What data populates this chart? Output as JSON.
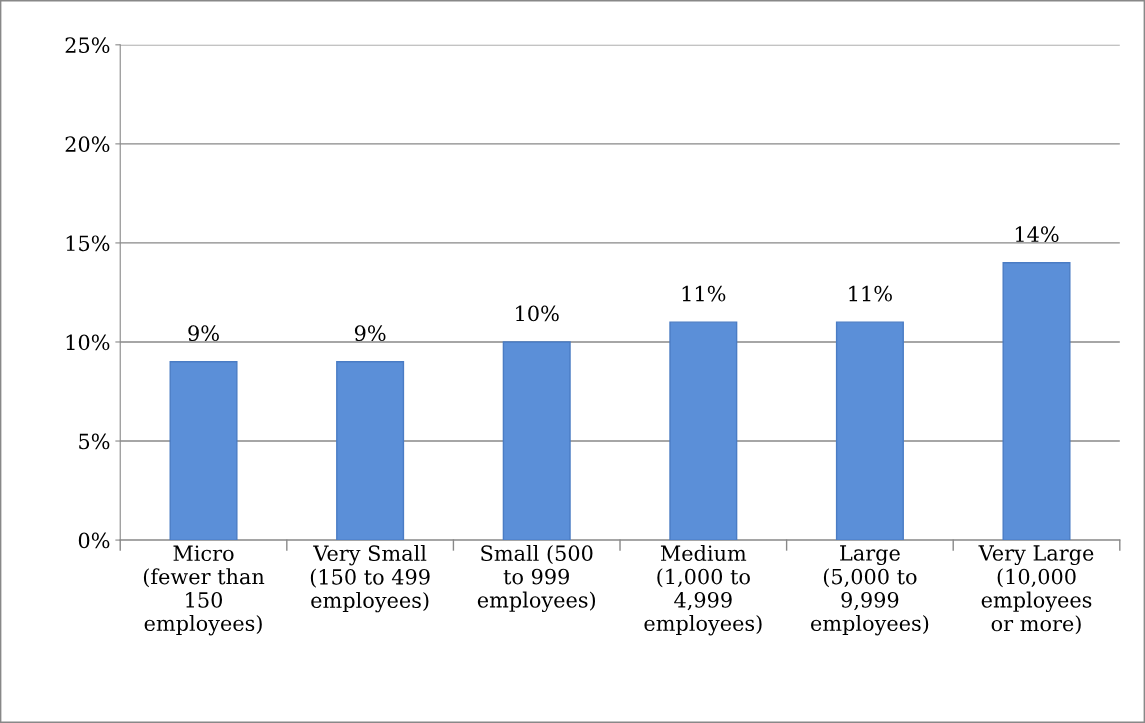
{
  "chart_data": {
    "type": "bar",
    "categories": [
      "Micro\n(fewer than\n150\nemployees)",
      "Very Small\n(150 to 499\nemployees)",
      "Small (500\nto 999\nemployees)",
      "Medium\n(1,000 to\n4,999\nemployees)",
      "Large\n(5,000 to\n9,999\nemployees)",
      "Very Large\n(10,000\nemployees\nor more)"
    ],
    "values": [
      9,
      9,
      10,
      11,
      11,
      14
    ],
    "value_labels": [
      "9%",
      "9%",
      "10%",
      "11%",
      "11%",
      "14%"
    ],
    "color": "#5b8fd8",
    "ylim": [
      0,
      25
    ],
    "yticks": [
      {
        "value": 0,
        "label": "0%"
      },
      {
        "value": 5,
        "label": "5%"
      },
      {
        "value": 10,
        "label": "10%"
      },
      {
        "value": 15,
        "label": "15%"
      },
      {
        "value": 20,
        "label": "20%"
      },
      {
        "value": 25,
        "label": "25%"
      }
    ],
    "grid": "y",
    "legend": false
  }
}
